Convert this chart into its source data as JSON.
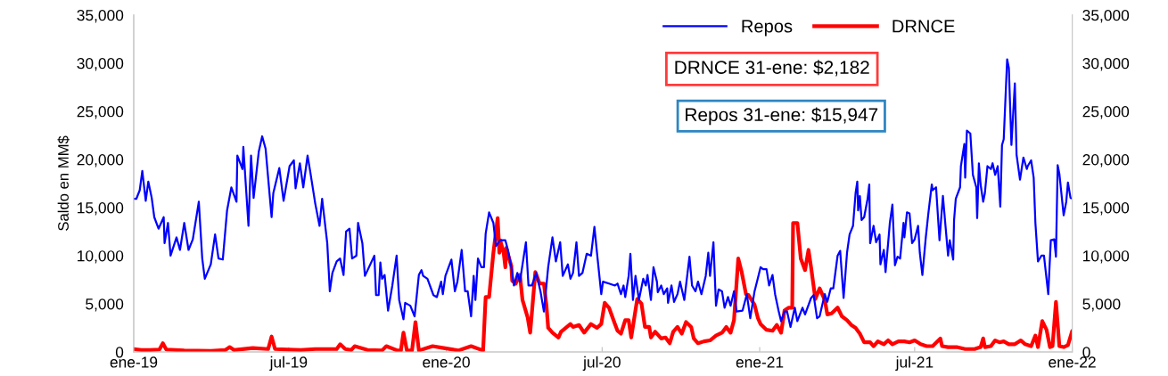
{
  "chart_data": {
    "type": "line",
    "ylabel": "Saldo en MM$",
    "legend": "top",
    "grid": false,
    "xlim": [
      "2019-01-01",
      "2022-01-01"
    ],
    "xticks": [
      {
        "value": "2019-01-01",
        "label": "ene-19"
      },
      {
        "value": "2019-07-01",
        "label": "jul-19"
      },
      {
        "value": "2020-01-01",
        "label": "ene-20"
      },
      {
        "value": "2020-07-01",
        "label": "jul-20"
      },
      {
        "value": "2021-01-01",
        "label": "ene-21"
      },
      {
        "value": "2021-07-01",
        "label": "jul-21"
      },
      {
        "value": "2022-01-01",
        "label": "ene-22"
      }
    ],
    "ylim": [
      0,
      35000
    ],
    "yticks": [
      {
        "value": 0,
        "label": "0"
      },
      {
        "value": 5000,
        "label": "5,000"
      },
      {
        "value": 10000,
        "label": "10,000"
      },
      {
        "value": 15000,
        "label": "15,000"
      },
      {
        "value": 20000,
        "label": "20,000"
      },
      {
        "value": 25000,
        "label": "25,000"
      },
      {
        "value": 30000,
        "label": "30,000"
      },
      {
        "value": 35000,
        "label": "35,000"
      }
    ],
    "y2lim": [
      0,
      35000
    ],
    "y2ticks": [
      {
        "value": 0,
        "label": "0"
      },
      {
        "value": 5000,
        "label": "5,000"
      },
      {
        "value": 10000,
        "label": "10,000"
      },
      {
        "value": 15000,
        "label": "15,000"
      },
      {
        "value": 20000,
        "label": "20,000"
      },
      {
        "value": 25000,
        "label": "25,000"
      },
      {
        "value": 30000,
        "label": "30,000"
      },
      {
        "value": 35000,
        "label": "35,000"
      }
    ],
    "annotations": [
      "DRNCE 31-ene: $2,182",
      "Repos 31-ene: $15,947"
    ],
    "series": [
      {
        "name": "Repos",
        "color": "#0000ff",
        "x": [
          "2019-01-01",
          "2019-01-04",
          "2019-01-08",
          "2019-01-11",
          "2019-01-15",
          "2019-01-18",
          "2019-01-22",
          "2019-01-25",
          "2019-01-30",
          "2019-02-05",
          "2019-02-06",
          "2019-02-10",
          "2019-02-13",
          "2019-02-20",
          "2019-02-24",
          "2019-03-01",
          "2019-03-06",
          "2019-03-11",
          "2019-03-18",
          "2019-03-22",
          "2019-03-25",
          "2019-04-01",
          "2019-04-06",
          "2019-04-10",
          "2019-04-15",
          "2019-04-20",
          "2019-04-25",
          "2019-05-01",
          "2019-05-02",
          "2019-05-08",
          "2019-05-09",
          "2019-05-15",
          "2019-05-18",
          "2019-05-21",
          "2019-05-27",
          "2019-05-31",
          "2019-06-04",
          "2019-06-11",
          "2019-06-13",
          "2019-06-20",
          "2019-06-25",
          "2019-07-02",
          "2019-07-07",
          "2019-07-09",
          "2019-07-14",
          "2019-07-18",
          "2019-07-23",
          "2019-07-26",
          "2019-08-01",
          "2019-08-06",
          "2019-08-09",
          "2019-08-15",
          "2019-08-18",
          "2019-08-21",
          "2019-08-26",
          "2019-08-30",
          "2019-09-03",
          "2019-09-06",
          "2019-09-10",
          "2019-09-13",
          "2019-09-18",
          "2019-09-20",
          "2019-09-25",
          "2019-09-28",
          "2019-10-09",
          "2019-10-11",
          "2019-10-14",
          "2019-10-16",
          "2019-10-18",
          "2019-10-21",
          "2019-10-25",
          "2019-10-30",
          "2019-11-04",
          "2019-11-07",
          "2019-11-12",
          "2019-11-14",
          "2019-11-20",
          "2019-11-25",
          "2019-11-30",
          "2019-12-03",
          "2019-12-05",
          "2019-12-10",
          "2019-12-17",
          "2019-12-21",
          "2019-12-26",
          "2019-12-28",
          "2019-12-31",
          "2020-01-07",
          "2020-01-11",
          "2020-01-14",
          "2020-01-19",
          "2020-01-23",
          "2020-01-26",
          "2020-01-30",
          "2020-02-02",
          "2020-02-04",
          "2020-02-07",
          "2020-02-11",
          "2020-02-14",
          "2020-02-16",
          "2020-02-20",
          "2020-02-25",
          "2020-02-28",
          "2020-03-04",
          "2020-03-10",
          "2020-03-13",
          "2020-03-17",
          "2020-03-20",
          "2020-03-24",
          "2020-03-27",
          "2020-04-03",
          "2020-04-06",
          "2020-04-10",
          "2020-04-15",
          "2020-04-20",
          "2020-04-24",
          "2020-04-29",
          "2020-05-04",
          "2020-05-08",
          "2020-05-13",
          "2020-05-16",
          "2020-05-22",
          "2020-05-25",
          "2020-05-28",
          "2020-06-01",
          "2020-06-04",
          "2020-06-08",
          "2020-06-13",
          "2020-06-18",
          "2020-06-22",
          "2020-06-25",
          "2020-06-30",
          "2020-07-02",
          "2020-07-09",
          "2020-07-16",
          "2020-07-19",
          "2020-07-23",
          "2020-07-26",
          "2020-07-28",
          "2020-08-01",
          "2020-08-03",
          "2020-08-06",
          "2020-08-09",
          "2020-08-13",
          "2020-08-18",
          "2020-08-21",
          "2020-08-23",
          "2020-08-27",
          "2020-08-30",
          "2020-09-03",
          "2020-09-04",
          "2020-09-08",
          "2020-09-11",
          "2020-09-15",
          "2020-09-16",
          "2020-09-20",
          "2020-09-23",
          "2020-09-27",
          "2020-09-30",
          "2020-10-05",
          "2020-10-11",
          "2020-10-14",
          "2020-10-18",
          "2020-10-21",
          "2020-10-25",
          "2020-10-30",
          "2020-11-02",
          "2020-11-04",
          "2020-11-08",
          "2020-11-11",
          "2020-11-14",
          "2020-11-18",
          "2020-11-21",
          "2020-11-25",
          "2020-11-28",
          "2020-12-02",
          "2020-12-05",
          "2020-12-12",
          "2020-12-17",
          "2020-12-21",
          "2020-12-26",
          "2020-12-30",
          "2021-01-02",
          "2021-01-05",
          "2021-01-09",
          "2021-01-12",
          "2021-01-16",
          "2021-01-19",
          "2021-01-23",
          "2021-01-26",
          "2021-01-30",
          "2021-02-02",
          "2021-02-06",
          "2021-02-11",
          "2021-02-14",
          "2021-02-20",
          "2021-02-23",
          "2021-03-02",
          "2021-03-05",
          "2021-03-09",
          "2021-03-12",
          "2021-03-18",
          "2021-03-21",
          "2021-03-25",
          "2021-03-28",
          "2021-04-02",
          "2021-04-05",
          "2021-04-09",
          "2021-04-13",
          "2021-04-16",
          "2021-04-20",
          "2021-04-23",
          "2021-04-25",
          "2021-04-26",
          "2021-04-28",
          "2021-04-30",
          "2021-05-03",
          "2021-05-07",
          "2021-05-09",
          "2021-05-10",
          "2021-05-14",
          "2021-05-17",
          "2021-05-21",
          "2021-05-22",
          "2021-05-26",
          "2021-05-28",
          "2021-05-31",
          "2021-06-02",
          "2021-06-05",
          "2021-06-08",
          "2021-06-11",
          "2021-06-14",
          "2021-06-18",
          "2021-06-19",
          "2021-06-22",
          "2021-06-25",
          "2021-06-28",
          "2021-07-01",
          "2021-07-05",
          "2021-07-07",
          "2021-07-10",
          "2021-07-14",
          "2021-07-17",
          "2021-07-21",
          "2021-07-22",
          "2021-07-26",
          "2021-07-30",
          "2021-08-03",
          "2021-08-09",
          "2021-08-11",
          "2021-08-15",
          "2021-08-16",
          "2021-08-18",
          "2021-08-23",
          "2021-08-24",
          "2021-08-28",
          "2021-08-29",
          "2021-08-31",
          "2021-09-04",
          "2021-09-07",
          "2021-09-11",
          "2021-09-12",
          "2021-09-14",
          "2021-09-16",
          "2021-09-19",
          "2021-09-21",
          "2021-09-24",
          "2021-09-28",
          "2021-09-30",
          "2021-10-03",
          "2021-10-06",
          "2021-10-09",
          "2021-10-11",
          "2021-10-13",
          "2021-10-17",
          "2021-10-19",
          "2021-10-22",
          "2021-10-26",
          "2021-10-28",
          "2021-11-01",
          "2021-11-05",
          "2021-11-09",
          "2021-11-10",
          "2021-11-14",
          "2021-11-17",
          "2021-11-19",
          "2021-11-22",
          "2021-11-26",
          "2021-11-29",
          "2021-12-04",
          "2021-12-07",
          "2021-12-11",
          "2021-12-13",
          "2021-12-15",
          "2021-12-17",
          "2021-12-22",
          "2021-12-25",
          "2021-12-27",
          "2021-12-30",
          "2022-01-01"
        ],
        "values": [
          15900,
          15900,
          16800,
          18800,
          15700,
          17700,
          16000,
          14000,
          12800,
          14000,
          11300,
          13400,
          10000,
          11900,
          10600,
          13400,
          10600,
          11700,
          15600,
          9700,
          7600,
          9100,
          12200,
          9700,
          9600,
          14700,
          17100,
          15600,
          20400,
          19000,
          21300,
          13100,
          20400,
          16000,
          20800,
          22400,
          21100,
          14000,
          16500,
          19100,
          15700,
          19300,
          19900,
          17000,
          19600,
          17100,
          20400,
          18800,
          15400,
          13100,
          15900,
          11300,
          6300,
          8200,
          9400,
          9700,
          8000,
          12500,
          12800,
          9700,
          10000,
          13400,
          11300,
          7900,
          10000,
          5900,
          5900,
          9300,
          7600,
          8000,
          4300,
          6900,
          10000,
          5400,
          3400,
          5100,
          4800,
          3700,
          8000,
          8500,
          7900,
          7600,
          5900,
          5700,
          7300,
          6000,
          7900,
          9600,
          6300,
          7300,
          10600,
          6300,
          6300,
          3700,
          7900,
          5400,
          9700,
          8800,
          8800,
          12300,
          14500,
          13400,
          11000,
          11600,
          11600,
          10600,
          8800,
          6900,
          8200,
          7300,
          11400,
          6900,
          6900,
          8200,
          6300,
          4200,
          8800,
          11900,
          9400,
          11400,
          7900,
          9100,
          7600,
          8200,
          11400,
          7900,
          8200,
          10200,
          10000,
          13000,
          10300,
          6000,
          7300,
          7100,
          6900,
          7100,
          6000,
          6900,
          5700,
          7900,
          10200,
          5400,
          7900,
          5400,
          7600,
          6900,
          8000,
          5400,
          8800,
          7300,
          6200,
          6900,
          6000,
          6600,
          5100,
          6900,
          5200,
          6000,
          7300,
          5400,
          9900,
          6900,
          6300,
          7300,
          6000,
          7900,
          10300,
          7900,
          11400,
          4800,
          6500,
          6300,
          4600,
          5700,
          4800,
          6300,
          4200,
          4300,
          6000,
          3500,
          6300,
          7700,
          8800,
          8600,
          8600,
          6900,
          8000,
          6000,
          4300,
          3200,
          4200,
          4200,
          2600,
          4600,
          3200,
          4600,
          3900,
          5600,
          5900,
          3500,
          3700,
          6000,
          5200,
          6600,
          6600,
          10000,
          10500,
          5600,
          10300,
          12200,
          13100,
          16500,
          17700,
          14700,
          16200,
          13700,
          14000,
          15900,
          17400,
          11300,
          13100,
          11400,
          12200,
          9100,
          10600,
          8300,
          11300,
          13400,
          15300,
          9000,
          9900,
          9700,
          13400,
          11900,
          14500,
          14400,
          11300,
          11700,
          13100,
          10300,
          8000,
          11900,
          14400,
          17400,
          16800,
          17100,
          11600,
          16200,
          10000,
          11600,
          9600,
          13700,
          15900,
          17100,
          19300,
          21600,
          18100,
          23000,
          22700,
          18400,
          17100,
          13900,
          19600,
          17400,
          15600,
          16500,
          19300,
          19000,
          19600,
          18400,
          19300,
          15100,
          21500,
          22100,
          30400,
          29500,
          21500,
          27900,
          20500,
          17900,
          20200,
          19000,
          19300,
          19900,
          18100,
          13400,
          9400,
          10000,
          10000,
          6000,
          11600,
          11700,
          9900,
          19400,
          18500,
          14200,
          15600,
          17600,
          16000,
          15947
        ]
      },
      {
        "name": "DRNCE",
        "color": "#ff0000",
        "x": [
          "2019-01-01",
          "2019-01-10",
          "2019-01-20",
          "2019-01-31",
          "2019-02-04",
          "2019-02-08",
          "2019-03-01",
          "2019-04-01",
          "2019-04-18",
          "2019-04-23",
          "2019-04-28",
          "2019-05-20",
          "2019-06-07",
          "2019-06-11",
          "2019-06-15",
          "2019-07-15",
          "2019-08-01",
          "2019-08-26",
          "2019-08-30",
          "2019-09-05",
          "2019-09-12",
          "2019-09-16",
          "2019-10-01",
          "2019-10-18",
          "2019-10-23",
          "2019-11-05",
          "2019-11-09",
          "2019-11-12",
          "2019-11-16",
          "2019-11-22",
          "2019-11-26",
          "2019-11-30",
          "2019-12-16",
          "2019-12-29",
          "2020-01-15",
          "2020-01-30",
          "2020-02-13",
          "2020-02-16",
          "2020-02-20",
          "2020-02-25",
          "2020-03-01",
          "2020-03-03",
          "2020-03-04",
          "2020-03-08",
          "2020-03-10",
          "2020-03-11",
          "2020-03-17",
          "2020-03-18",
          "2020-03-22",
          "2020-03-27",
          "2020-03-30",
          "2020-04-05",
          "2020-04-08",
          "2020-04-14",
          "2020-04-19",
          "2020-04-24",
          "2020-04-27",
          "2020-04-29",
          "2020-05-04",
          "2020-05-11",
          "2020-05-14",
          "2020-05-25",
          "2020-05-28",
          "2020-06-04",
          "2020-06-10",
          "2020-06-18",
          "2020-06-25",
          "2020-06-30",
          "2020-07-04",
          "2020-07-09",
          "2020-07-16",
          "2020-07-19",
          "2020-07-23",
          "2020-07-28",
          "2020-08-01",
          "2020-08-04",
          "2020-08-11",
          "2020-08-16",
          "2020-08-20",
          "2020-08-25",
          "2020-08-27",
          "2020-09-01",
          "2020-09-08",
          "2020-09-13",
          "2020-09-18",
          "2020-09-22",
          "2020-09-27",
          "2020-10-02",
          "2020-10-07",
          "2020-10-13",
          "2020-10-16",
          "2020-10-21",
          "2020-10-28",
          "2020-11-04",
          "2020-11-11",
          "2020-11-18",
          "2020-11-23",
          "2020-11-28",
          "2020-12-02",
          "2020-12-07",
          "2020-12-11",
          "2020-12-16",
          "2020-12-19",
          "2020-12-26",
          "2020-12-30",
          "2021-01-02",
          "2021-01-09",
          "2021-01-16",
          "2021-01-21",
          "2021-01-26",
          "2021-01-30",
          "2021-02-04",
          "2021-02-08",
          "2021-02-09",
          "2021-02-14",
          "2021-02-18",
          "2021-02-23",
          "2021-02-27",
          "2021-03-02",
          "2021-03-07",
          "2021-03-12",
          "2021-03-18",
          "2021-03-21",
          "2021-03-26",
          "2021-04-02",
          "2021-04-07",
          "2021-04-13",
          "2021-04-18",
          "2021-04-23",
          "2021-04-28",
          "2021-05-03",
          "2021-05-10",
          "2021-05-14",
          "2021-05-19",
          "2021-05-26",
          "2021-05-31",
          "2021-06-05",
          "2021-06-12",
          "2021-06-19",
          "2021-06-25",
          "2021-07-01",
          "2021-07-08",
          "2021-07-15",
          "2021-07-22",
          "2021-07-31",
          "2021-08-02",
          "2021-08-09",
          "2021-08-19",
          "2021-08-29",
          "2021-09-09",
          "2021-09-16",
          "2021-09-19",
          "2021-09-21",
          "2021-09-28",
          "2021-10-03",
          "2021-10-08",
          "2021-10-13",
          "2021-10-19",
          "2021-10-26",
          "2021-11-02",
          "2021-11-07",
          "2021-11-14",
          "2021-11-19",
          "2021-11-22",
          "2021-11-27",
          "2021-12-02",
          "2021-12-06",
          "2021-12-09",
          "2021-12-13",
          "2021-12-17",
          "2021-12-22",
          "2021-12-27",
          "2022-01-01"
        ],
        "values": [
          300,
          200,
          200,
          250,
          900,
          250,
          150,
          100,
          200,
          500,
          200,
          400,
          300,
          1600,
          300,
          200,
          300,
          300,
          800,
          300,
          200,
          600,
          200,
          150,
          600,
          150,
          150,
          2000,
          150,
          150,
          3100,
          150,
          600,
          400,
          150,
          600,
          150,
          5700,
          5700,
          10300,
          13900,
          10300,
          11600,
          10300,
          8800,
          10800,
          8900,
          7400,
          7100,
          8000,
          5400,
          3600,
          2000,
          8300,
          7100,
          7100,
          4800,
          2500,
          2000,
          1500,
          2100,
          2900,
          2600,
          2800,
          2000,
          2900,
          2500,
          2900,
          5100,
          4600,
          2900,
          2200,
          1900,
          3300,
          3300,
          1500,
          5500,
          5000,
          2600,
          2600,
          1500,
          2100,
          1400,
          1500,
          900,
          2100,
          2600,
          1900,
          3100,
          2600,
          1400,
          900,
          1100,
          1200,
          1700,
          2000,
          2600,
          2000,
          3300,
          9700,
          8300,
          6000,
          5900,
          4900,
          3500,
          2900,
          2300,
          2200,
          2800,
          2000,
          4300,
          4600,
          4600,
          13400,
          13400,
          9700,
          8500,
          10600,
          8800,
          5500,
          6600,
          5400,
          3900,
          4000,
          4600,
          3700,
          3300,
          2800,
          2500,
          1900,
          1000,
          1000,
          600,
          1100,
          800,
          1200,
          800,
          1100,
          1100,
          1000,
          1200,
          800,
          600,
          600,
          1400,
          600,
          500,
          500,
          300,
          300,
          500,
          1400,
          500,
          600,
          1200,
          1000,
          1100,
          800,
          800,
          1200,
          800,
          600,
          1700,
          500,
          3200,
          2300,
          500,
          600,
          5200,
          600,
          500,
          700,
          2182
        ]
      }
    ]
  }
}
